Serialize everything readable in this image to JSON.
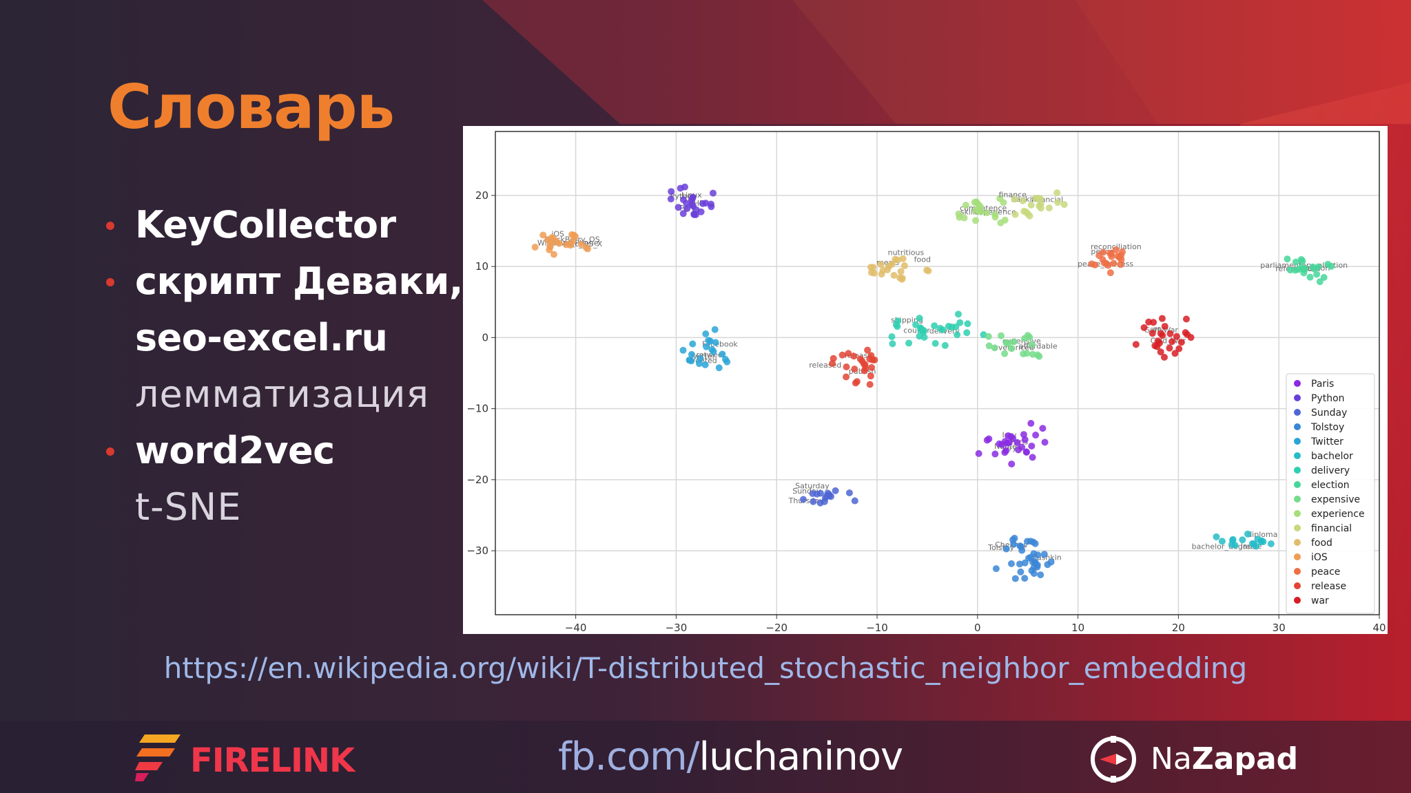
{
  "slide": {
    "title": "Словарь",
    "bullets": [
      {
        "lines": [
          {
            "text": "KeyCollector",
            "style": "strong"
          }
        ]
      },
      {
        "lines": [
          {
            "text": "скрипт Деваки,",
            "style": "strong"
          },
          {
            "text": "seo-excel.ru",
            "style": "strong"
          },
          {
            "text": "лемматизация",
            "style": "light"
          }
        ]
      },
      {
        "lines": [
          {
            "text": "word2vec",
            "style": "strong"
          },
          {
            "text": "t-SNE",
            "style": "light"
          }
        ]
      }
    ],
    "link": "https://en.wikipedia.org/wiki/T-distributed_stochastic_neighbor_embedding"
  },
  "footer": {
    "brand_left": "FIRELINK",
    "fb_prefix": "fb.com/",
    "fb_handle": "luchaninov",
    "brand_right_a": "Na",
    "brand_right_b": "Zapad"
  },
  "colors": {
    "title": "#ef7f2d",
    "bullet_dot": "#d93a2f",
    "link": "#9fb8e8",
    "firelink": "#f0364a"
  },
  "chart_data": {
    "type": "scatter",
    "title": "",
    "xlabel": "",
    "ylabel": "",
    "xlim": [
      -48,
      40
    ],
    "ylim": [
      -39,
      29
    ],
    "xticks": [
      -40,
      -30,
      -20,
      -10,
      0,
      10,
      20,
      30,
      40
    ],
    "yticks": [
      20,
      10,
      0,
      -10,
      -20,
      -30
    ],
    "grid": true,
    "legend_position": "bottom-right",
    "series": [
      {
        "name": "Paris",
        "color": "#8a2be2",
        "center": [
          4,
          -15
        ],
        "spread": [
          5,
          3.5
        ],
        "count": 28,
        "labels": [
          "Nantes",
          "Paris",
          "Ivry",
          "Issy"
        ]
      },
      {
        "name": "Python",
        "color": "#6a3fd8",
        "center": [
          -28,
          19
        ],
        "spread": [
          3.5,
          3
        ],
        "count": 24,
        "labels": [
          "Python",
          "Perl",
          "PHP",
          "Linux"
        ]
      },
      {
        "name": "Sunday",
        "color": "#4e66d4",
        "center": [
          -15,
          -22
        ],
        "spread": [
          3.5,
          2.5
        ],
        "count": 16,
        "labels": [
          "Saturday",
          "Thursday",
          "Sunday"
        ]
      },
      {
        "name": "Tolstoy",
        "color": "#3b86d6",
        "center": [
          5,
          -31
        ],
        "spread": [
          5,
          4
        ],
        "count": 34,
        "labels": [
          "Tolstoy",
          "Pushkin",
          "Chekhov"
        ]
      },
      {
        "name": "Twitter",
        "color": "#2aa4d8",
        "center": [
          -27,
          -2
        ],
        "spread": [
          3.5,
          4
        ],
        "count": 20,
        "labels": [
          "Twitter",
          "Facebook",
          "tweeted",
          "retweet"
        ]
      },
      {
        "name": "bachelor",
        "color": "#25bcc8",
        "center": [
          27,
          -29
        ],
        "spread": [
          4,
          2
        ],
        "count": 16,
        "labels": [
          "bachelor_degree",
          "laude",
          "diploma"
        ]
      },
      {
        "name": "delivery",
        "color": "#2ecfb0",
        "center": [
          -4,
          1
        ],
        "spread": [
          6,
          3
        ],
        "count": 30,
        "labels": [
          "delivery",
          "shipping",
          "courier"
        ]
      },
      {
        "name": "election",
        "color": "#47d69a",
        "center": [
          33,
          10
        ],
        "spread": [
          3,
          3
        ],
        "count": 22,
        "labels": [
          "election",
          "referendum",
          "parliamentary_election"
        ]
      },
      {
        "name": "expensive",
        "color": "#74dc8a",
        "center": [
          4,
          -1
        ],
        "spread": [
          4,
          3
        ],
        "count": 18,
        "labels": [
          "expensive",
          "affordable",
          "overpriced"
        ]
      },
      {
        "name": "experience",
        "color": "#a6de7b",
        "center": [
          0,
          18
        ],
        "spread": [
          4,
          3
        ],
        "count": 20,
        "labels": [
          "experience",
          "skillset",
          "competence"
        ]
      },
      {
        "name": "financial",
        "color": "#c8d87e",
        "center": [
          6,
          19
        ],
        "spread": [
          4,
          3
        ],
        "count": 18,
        "labels": [
          "financial",
          "banking",
          "finance"
        ]
      },
      {
        "name": "food",
        "color": "#e0bd6b",
        "center": [
          -8,
          10
        ],
        "spread": [
          5,
          3
        ],
        "count": 22,
        "labels": [
          "nutritious",
          "food",
          "meals"
        ]
      },
      {
        "name": "iOS",
        "color": "#ef9c55",
        "center": [
          -41,
          13
        ],
        "spread": [
          3.5,
          2.5
        ],
        "count": 22,
        "labels": [
          "iOS",
          "Mac_OS_X",
          "BlackBerry_OS",
          "Windows_Phone"
        ]
      },
      {
        "name": "peace",
        "color": "#ee6f45",
        "center": [
          13,
          11
        ],
        "spread": [
          4,
          3
        ],
        "count": 20,
        "labels": [
          "peace",
          "peace_process",
          "reconciliation"
        ]
      },
      {
        "name": "release",
        "color": "#e34434",
        "center": [
          -12,
          -4
        ],
        "spread": [
          4,
          4
        ],
        "count": 24,
        "labels": [
          "release",
          "publish",
          "released"
        ]
      },
      {
        "name": "war",
        "color": "#d81e25",
        "center": [
          19,
          0
        ],
        "spread": [
          4,
          4
        ],
        "count": 26,
        "labels": [
          "war",
          "Cold_War",
          "Gulf_War"
        ]
      }
    ]
  }
}
